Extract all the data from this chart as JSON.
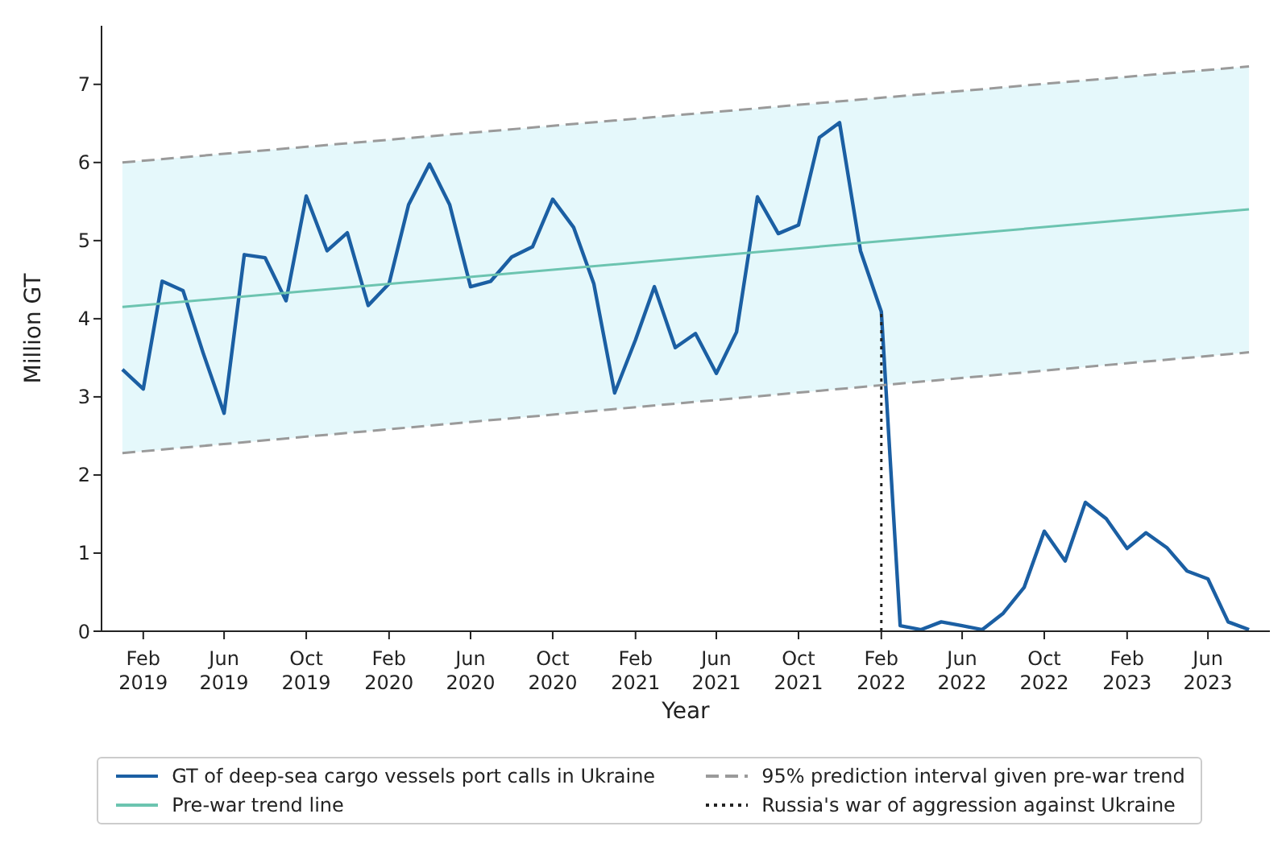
{
  "chart_data": {
    "type": "line",
    "xlabel": "Year",
    "ylabel": "Million GT",
    "x": [
      "2019-01",
      "2019-02",
      "2019-03",
      "2019-04",
      "2019-05",
      "2019-06",
      "2019-07",
      "2019-08",
      "2019-09",
      "2019-10",
      "2019-11",
      "2019-12",
      "2020-01",
      "2020-02",
      "2020-03",
      "2020-04",
      "2020-05",
      "2020-06",
      "2020-07",
      "2020-08",
      "2020-09",
      "2020-10",
      "2020-11",
      "2020-12",
      "2021-01",
      "2021-02",
      "2021-03",
      "2021-04",
      "2021-05",
      "2021-06",
      "2021-07",
      "2021-08",
      "2021-09",
      "2021-10",
      "2021-11",
      "2021-12",
      "2022-01",
      "2022-02",
      "2022-03",
      "2022-04",
      "2022-05",
      "2022-06",
      "2022-07",
      "2022-08",
      "2022-09",
      "2022-10",
      "2022-11",
      "2022-12",
      "2023-01",
      "2023-02",
      "2023-03",
      "2023-04",
      "2023-05",
      "2023-06",
      "2023-07",
      "2023-08"
    ],
    "series": [
      {
        "name": "GT of deep-sea cargo vessels port calls in Ukraine",
        "color": "#1b5fa3",
        "values": [
          3.35,
          3.1,
          4.48,
          4.36,
          3.56,
          2.79,
          4.82,
          4.78,
          4.23,
          5.57,
          4.87,
          5.1,
          4.17,
          4.45,
          5.46,
          5.98,
          5.46,
          4.41,
          4.48,
          4.79,
          4.92,
          5.53,
          5.17,
          4.45,
          3.05,
          3.73,
          4.41,
          3.63,
          3.81,
          3.3,
          3.83,
          5.56,
          5.09,
          5.2,
          6.32,
          6.51,
          4.87,
          4.09,
          0.07,
          0.02,
          0.12,
          0.07,
          0.02,
          0.23,
          0.56,
          1.28,
          0.9,
          1.65,
          1.44,
          1.06,
          1.26,
          1.07,
          0.77,
          0.67,
          0.12,
          0.02
        ]
      },
      {
        "name": "Pre-war trend line",
        "type": "line",
        "color": "#6cc4b0",
        "x": [
          "2019-01",
          "2023-08"
        ],
        "values": [
          4.15,
          5.4
        ],
        "lower": [
          2.28,
          3.57
        ],
        "upper": [
          6.0,
          7.23
        ]
      },
      {
        "name": "95% prediction interval given pre-war trend",
        "type": "line",
        "color": "#9a9a9a",
        "line_style": "dashed",
        "x": [
          "2019-01",
          "2023-08"
        ],
        "values": [
          6.0,
          7.23
        ]
      },
      {
        "type": "line",
        "color": "#9a9a9a",
        "line_style": "dashed",
        "x": [
          "2019-01",
          "2023-08"
        ],
        "values": [
          2.28,
          3.57
        ]
      }
    ],
    "ref_lines": [
      {
        "axis": "x",
        "value": "2022-02",
        "label": "Russia's war of aggression against Ukraine",
        "color": "#222222",
        "line_style": "dotted"
      }
    ],
    "xlim": [
      "2018-12",
      "2023-09"
    ],
    "xticks": [
      {
        "value": "2019-02",
        "label": "Feb 2019"
      },
      {
        "value": "2019-06",
        "label": "Jun 2019"
      },
      {
        "value": "2019-10",
        "label": "Oct 2019"
      },
      {
        "value": "2020-02",
        "label": "Feb 2020"
      },
      {
        "value": "2020-06",
        "label": "Jun 2020"
      },
      {
        "value": "2020-10",
        "label": "Oct 2020"
      },
      {
        "value": "2021-02",
        "label": "Feb 2021"
      },
      {
        "value": "2021-06",
        "label": "Jun 2021"
      },
      {
        "value": "2021-10",
        "label": "Oct 2021"
      },
      {
        "value": "2022-02",
        "label": "Feb 2022"
      },
      {
        "value": "2022-06",
        "label": "Jun 2022"
      },
      {
        "value": "2022-10",
        "label": "Oct 2022"
      },
      {
        "value": "2023-02",
        "label": "Feb 2023"
      },
      {
        "value": "2023-06",
        "label": "Jun 2023"
      }
    ],
    "ylim": [
      0,
      7.75
    ],
    "yticks": [
      0,
      1,
      2,
      3,
      4,
      5,
      6,
      7
    ],
    "legend": "bottom",
    "marker": "none"
  }
}
